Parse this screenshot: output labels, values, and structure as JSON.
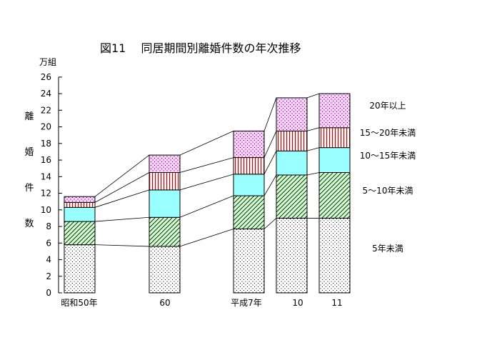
{
  "chart_data": {
    "type": "bar",
    "stacked": true,
    "title": "図11　 同居期間別離婚件数の年次推移",
    "y_unit": "万組",
    "ylabel": "離婚件数",
    "ylim": [
      0,
      26
    ],
    "yticks": [
      0,
      2,
      4,
      6,
      8,
      10,
      12,
      14,
      16,
      18,
      20,
      22,
      24,
      26
    ],
    "categories": [
      "昭和50年",
      "60",
      "平成7年",
      "10",
      "11"
    ],
    "series": [
      {
        "name": "5年未満",
        "values": [
          5.8,
          5.6,
          7.7,
          9.0,
          9.0
        ],
        "fill": "#ffffff",
        "pattern": "dots"
      },
      {
        "name": "5～10年未満",
        "values": [
          2.8,
          3.5,
          4.0,
          5.2,
          5.5
        ],
        "fill": "#ccffcc",
        "pattern": "diag"
      },
      {
        "name": "10～15年未満",
        "values": [
          1.7,
          3.3,
          2.6,
          2.9,
          3.0
        ],
        "fill": "#99ffff",
        "pattern": "none"
      },
      {
        "name": "15～20年未満",
        "values": [
          0.6,
          2.1,
          2.0,
          2.4,
          2.4
        ],
        "fill": "#ffffff",
        "pattern": "vlines"
      },
      {
        "name": "20年以上",
        "values": [
          0.7,
          2.1,
          3.2,
          4.0,
          4.1
        ],
        "fill": "#ffccff",
        "pattern": "dots"
      }
    ],
    "grid": false,
    "legend": "right"
  }
}
